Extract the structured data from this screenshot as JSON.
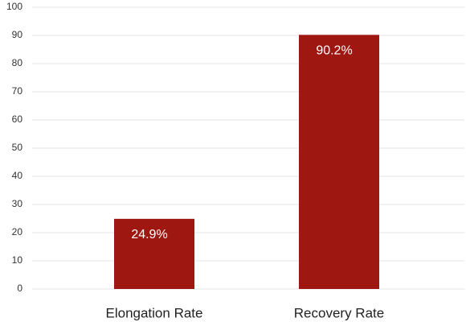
{
  "chart_data": {
    "type": "bar",
    "categories": [
      "Elongation Rate",
      "Recovery Rate"
    ],
    "values": [
      24.9,
      90.2
    ],
    "value_labels": [
      "24.9%",
      "90.2%"
    ],
    "color": "#9e1711",
    "ylim": [
      0,
      100
    ],
    "yticks": [
      0,
      10,
      20,
      30,
      40,
      50,
      60,
      70,
      80,
      90,
      100
    ],
    "grid": true
  }
}
